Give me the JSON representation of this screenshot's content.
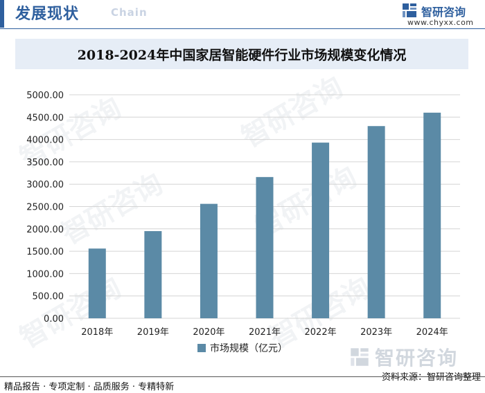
{
  "header": {
    "title": "发展现状",
    "subtitle": "Chain",
    "brand_name": "智研咨询",
    "brand_url": "www.chyxx.com"
  },
  "colors": {
    "accent": "#2e5f9e",
    "bar": "#5b8aa6",
    "title_bg": "#e6edf6"
  },
  "chart_data": {
    "type": "bar",
    "title": "2018-2024年中国家居智能硬件行业市场规模变化情况",
    "categories": [
      "2018年",
      "2019年",
      "2020年",
      "2021年",
      "2022年",
      "2023年",
      "2024年"
    ],
    "series": [
      {
        "name": "市场规模（亿元）",
        "values": [
          1560,
          1950,
          2560,
          3160,
          3930,
          4300,
          4600
        ]
      }
    ],
    "ylim": [
      0,
      5000
    ],
    "yticks": [
      "0.00",
      "500.00",
      "1000.00",
      "1500.00",
      "2000.00",
      "2500.00",
      "3000.00",
      "3500.00",
      "4000.00",
      "4500.00",
      "5000.00"
    ],
    "xlabel": "",
    "ylabel": "",
    "grid": true,
    "legend": "bottom-center"
  },
  "watermark": {
    "brand": "智研咨询"
  },
  "source": "资料来源：智研咨询整理",
  "footer": "精品报告 · 专项定制 · 品质服务 · 专精特新"
}
